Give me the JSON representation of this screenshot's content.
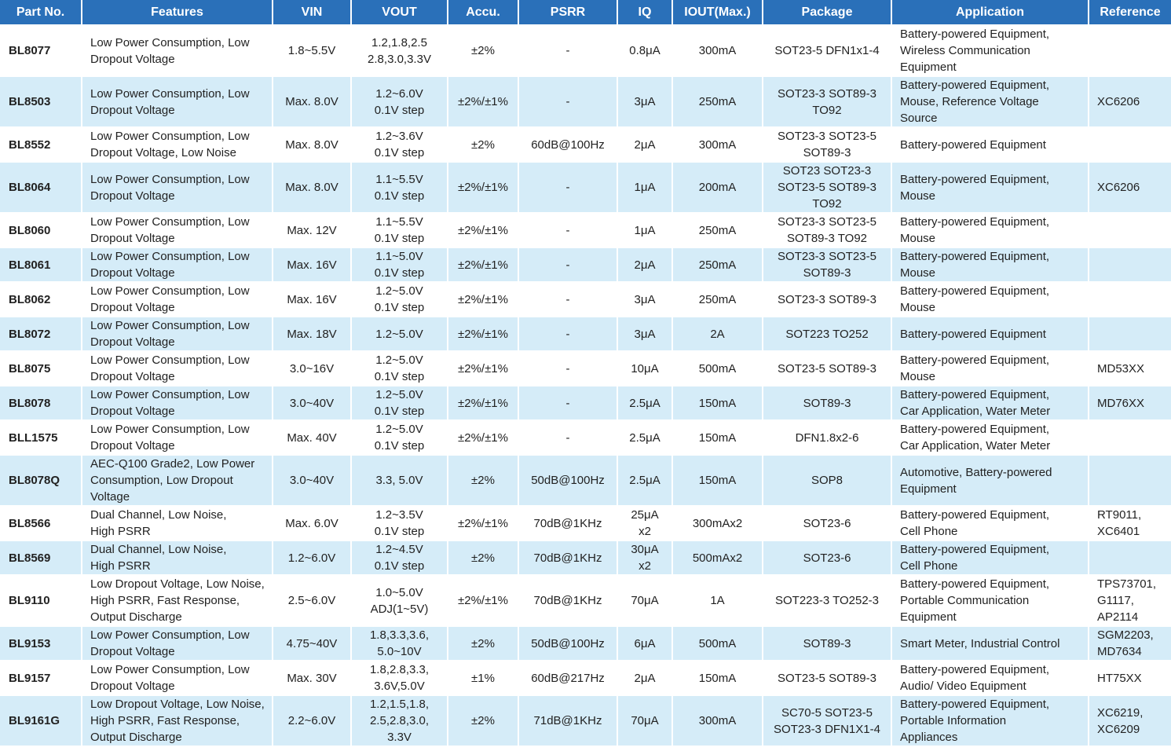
{
  "table": {
    "headers": [
      "Part No.",
      "Features",
      "VIN",
      "VOUT",
      "Accu.",
      "PSRR",
      "IQ",
      "IOUT(Max.)",
      "Package",
      "Application",
      "Reference"
    ],
    "rows": [
      [
        "BL8077",
        "Low Power Consumption, Low Dropout Voltage",
        "1.8~5.5V",
        "1.2,1.8,2.5\n2.8,3.0,3.3V",
        "±2%",
        "-",
        "0.8μA",
        "300mA",
        "SOT23-5 DFN1x1-4",
        "Battery-powered Equipment,\nWireless Communication\nEquipment",
        ""
      ],
      [
        "BL8503",
        "Low Power Consumption, Low Dropout Voltage",
        "Max. 8.0V",
        "1.2~6.0V\n0.1V step",
        "±2%/±1%",
        "-",
        "3μA",
        "250mA",
        "SOT23-3 SOT89-3\nTO92",
        "Battery-powered Equipment,\nMouse, Reference Voltage\nSource",
        "XC6206"
      ],
      [
        "BL8552",
        "Low Power Consumption, Low Dropout Voltage, Low Noise",
        "Max. 8.0V",
        "1.2~3.6V\n0.1V step",
        "±2%",
        "60dB@100Hz",
        "2μA",
        "300mA",
        "SOT23-3 SOT23-5\nSOT89-3",
        "Battery-powered Equipment",
        ""
      ],
      [
        "BL8064",
        "Low Power Consumption, Low Dropout Voltage",
        "Max. 8.0V",
        "1.1~5.5V\n0.1V step",
        "±2%/±1%",
        "-",
        "1μA",
        "200mA",
        "SOT23 SOT23-3\nSOT23-5 SOT89-3\nTO92",
        "Battery-powered Equipment,\nMouse",
        "XC6206"
      ],
      [
        "BL8060",
        "Low Power Consumption, Low Dropout Voltage",
        "Max. 12V",
        "1.1~5.5V\n0.1V step",
        "±2%/±1%",
        "-",
        "1μA",
        "250mA",
        "SOT23-3 SOT23-5\nSOT89-3 TO92",
        "Battery-powered Equipment,\nMouse",
        ""
      ],
      [
        "BL8061",
        "Low Power Consumption, Low Dropout Voltage",
        "Max. 16V",
        "1.1~5.0V\n0.1V step",
        "±2%/±1%",
        "-",
        "2μA",
        "250mA",
        "SOT23-3 SOT23-5\nSOT89-3",
        "Battery-powered Equipment,\nMouse",
        ""
      ],
      [
        "BL8062",
        "Low Power Consumption, Low Dropout Voltage",
        "Max. 16V",
        "1.2~5.0V\n0.1V step",
        "±2%/±1%",
        "-",
        "3μA",
        "250mA",
        "SOT23-3 SOT89-3",
        "Battery-powered Equipment,\nMouse",
        ""
      ],
      [
        "BL8072",
        "Low Power Consumption, Low Dropout Voltage",
        "Max. 18V",
        "1.2~5.0V",
        "±2%/±1%",
        "-",
        "3μA",
        "2A",
        "SOT223 TO252",
        "Battery-powered Equipment",
        ""
      ],
      [
        "BL8075",
        "Low Power Consumption, Low Dropout Voltage",
        "3.0~16V",
        "1.2~5.0V\n0.1V step",
        "±2%/±1%",
        "-",
        "10μA",
        "500mA",
        "SOT23-5 SOT89-3",
        "Battery-powered Equipment,\nMouse",
        "MD53XX"
      ],
      [
        "BL8078",
        "Low Power Consumption, Low Dropout Voltage",
        "3.0~40V",
        "1.2~5.0V\n0.1V step",
        "±2%/±1%",
        "-",
        "2.5μA",
        "150mA",
        "SOT89-3",
        "Battery-powered Equipment,\nCar Application, Water Meter",
        "MD76XX"
      ],
      [
        "BLL1575",
        "Low Power Consumption, Low Dropout Voltage",
        "Max. 40V",
        "1.2~5.0V\n0.1V step",
        "±2%/±1%",
        "-",
        "2.5μA",
        "150mA",
        "DFN1.8x2-6",
        "Battery-powered Equipment,\nCar Application, Water Meter",
        ""
      ],
      [
        "BL8078Q",
        "AEC-Q100 Grade2, Low Power Consumption, Low Dropout Voltage",
        "3.0~40V",
        "3.3, 5.0V",
        "±2%",
        "50dB@100Hz",
        "2.5μA",
        "150mA",
        "SOP8",
        "Automotive, Battery-powered\nEquipment",
        ""
      ],
      [
        "BL8566",
        "Dual Channel, Low Noise,\nHigh PSRR",
        "Max. 6.0V",
        "1.2~3.5V\n0.1V step",
        "±2%/±1%",
        "70dB@1KHz",
        "25μA\nx2",
        "300mAx2",
        "SOT23-6",
        "Battery-powered Equipment,\nCell Phone",
        "RT9011,\nXC6401"
      ],
      [
        "BL8569",
        "Dual Channel, Low Noise,\nHigh PSRR",
        "1.2~6.0V",
        "1.2~4.5V\n0.1V step",
        "±2%",
        "70dB@1KHz",
        "30μA\nx2",
        "500mAx2",
        "SOT23-6",
        "Battery-powered Equipment,\nCell Phone",
        ""
      ],
      [
        "BL9110",
        "Low Dropout Voltage, Low Noise, High PSRR, Fast Response, Output Discharge",
        "2.5~6.0V",
        "1.0~5.0V\nADJ(1~5V)",
        "±2%/±1%",
        "70dB@1KHz",
        "70μA",
        "1A",
        "SOT223-3 TO252-3",
        "Battery-powered Equipment,\nPortable Communication\nEquipment",
        "TPS73701,\nG1117,\nAP2114"
      ],
      [
        "BL9153",
        "Low Power Consumption, Low Dropout Voltage",
        "4.75~40V",
        "1.8,3.3,3.6,\n5.0~10V",
        "±2%",
        "50dB@100Hz",
        "6μA",
        "500mA",
        "SOT89-3",
        "Smart Meter, Industrial Control",
        "SGM2203,\nMD7634"
      ],
      [
        "BL9157",
        "Low Power Consumption, Low Dropout Voltage",
        "Max. 30V",
        "1.8,2.8,3.3,\n3.6V,5.0V",
        "±1%",
        "60dB@217Hz",
        "2μA",
        "150mA",
        "SOT23-5 SOT89-3",
        "Battery-powered Equipment,\nAudio/ Video Equipment",
        "HT75XX"
      ],
      [
        "BL9161G",
        "Low Dropout Voltage, Low Noise, High PSRR, Fast Response, Output Discharge",
        "2.2~6.0V",
        "1.2,1.5,1.8,\n2.5,2.8,3.0,\n3.3V",
        "±2%",
        "71dB@1KHz",
        "70μA",
        "300mA",
        "SC70-5 SOT23-5\nSOT23-3 DFN1X1-4",
        "Battery-powered Equipment,\nPortable Information\nAppliances",
        "XC6219,\nXC6209"
      ]
    ]
  }
}
